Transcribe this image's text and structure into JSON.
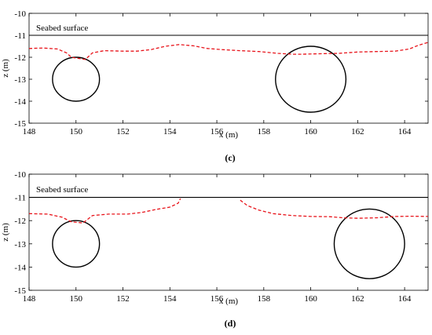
{
  "chart_data": [
    {
      "type": "line",
      "panel_label": "(c)",
      "xlabel": "x (m)",
      "ylabel": "z (m)",
      "xlim": [
        148,
        165
      ],
      "ylim": [
        -15,
        -10
      ],
      "xticks": [
        148,
        150,
        152,
        154,
        156,
        158,
        160,
        162,
        164
      ],
      "yticks": [
        -15,
        -14,
        -13,
        -12,
        -11,
        -10
      ],
      "annotation": {
        "text": "Seabed surface",
        "x": 148.3,
        "y": -10.78
      },
      "seabed_line": {
        "y": -11,
        "x": [
          148,
          165
        ]
      },
      "circles": [
        {
          "cx": 150,
          "cy": -13,
          "r": 1
        },
        {
          "cx": 160,
          "cy": -13,
          "r": 1.5
        }
      ],
      "dashed_curves": [
        {
          "color": "#e8141b",
          "points": [
            [
              148,
              -11.6
            ],
            [
              148.6,
              -11.58
            ],
            [
              149.2,
              -11.62
            ],
            [
              149.6,
              -11.8
            ],
            [
              149.8,
              -12.0
            ],
            [
              150.4,
              -12.1
            ],
            [
              150.7,
              -11.8
            ],
            [
              151.2,
              -11.7
            ],
            [
              152,
              -11.72
            ],
            [
              152.6,
              -11.72
            ],
            [
              153.2,
              -11.65
            ],
            [
              153.8,
              -11.5
            ],
            [
              154.4,
              -11.42
            ],
            [
              155,
              -11.48
            ],
            [
              155.6,
              -11.6
            ],
            [
              156.2,
              -11.65
            ],
            [
              157,
              -11.7
            ],
            [
              157.8,
              -11.74
            ],
            [
              158.6,
              -11.82
            ],
            [
              159.2,
              -11.86
            ],
            [
              159.6,
              -11.86
            ],
            [
              160.4,
              -11.84
            ],
            [
              161.2,
              -11.82
            ],
            [
              162,
              -11.76
            ],
            [
              162.8,
              -11.74
            ],
            [
              163.6,
              -11.72
            ],
            [
              164.2,
              -11.62
            ],
            [
              164.6,
              -11.45
            ],
            [
              165,
              -11.32
            ]
          ]
        }
      ]
    },
    {
      "type": "line",
      "panel_label": "(d)",
      "xlabel": "x (m)",
      "ylabel": "z (m)",
      "xlim": [
        148,
        165
      ],
      "ylim": [
        -15,
        -10
      ],
      "xticks": [
        148,
        150,
        152,
        154,
        156,
        158,
        160,
        162,
        164
      ],
      "yticks": [
        -15,
        -14,
        -13,
        -12,
        -11,
        -10
      ],
      "annotation": {
        "text": "Seabed surface",
        "x": 148.3,
        "y": -10.78
      },
      "seabed_line": {
        "y": -11,
        "x": [
          148,
          165
        ]
      },
      "circles": [
        {
          "cx": 150,
          "cy": -13,
          "r": 1
        },
        {
          "cx": 162.5,
          "cy": -13,
          "r": 1.5
        }
      ],
      "dashed_curves": [
        {
          "color": "#e8141b",
          "points": [
            [
              148,
              -11.7
            ],
            [
              148.8,
              -11.72
            ],
            [
              149.4,
              -11.85
            ],
            [
              149.8,
              -12.05
            ],
            [
              150.3,
              -12.1
            ],
            [
              150.7,
              -11.78
            ],
            [
              151.4,
              -11.72
            ],
            [
              152.2,
              -11.72
            ],
            [
              152.8,
              -11.65
            ],
            [
              153.4,
              -11.52
            ],
            [
              154,
              -11.42
            ],
            [
              154.35,
              -11.25
            ],
            [
              154.45,
              -11.05
            ]
          ]
        },
        {
          "color": "#e8141b",
          "points": [
            [
              157,
              -11.12
            ],
            [
              157.3,
              -11.35
            ],
            [
              157.8,
              -11.55
            ],
            [
              158.4,
              -11.7
            ],
            [
              159.2,
              -11.78
            ],
            [
              160,
              -11.82
            ],
            [
              160.8,
              -11.83
            ],
            [
              161.4,
              -11.88
            ],
            [
              162,
              -11.9
            ],
            [
              162.8,
              -11.88
            ],
            [
              163.6,
              -11.82
            ],
            [
              164.3,
              -11.81
            ],
            [
              165,
              -11.82
            ]
          ]
        }
      ]
    }
  ]
}
